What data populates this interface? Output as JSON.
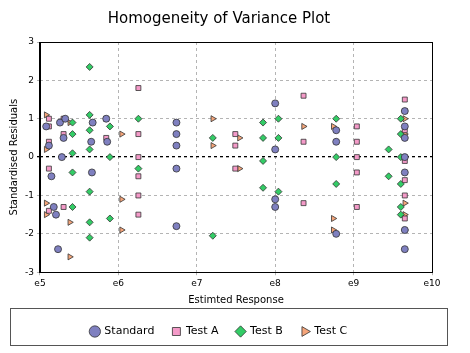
{
  "chart_data": {
    "type": "scatter",
    "title": "Homogeneity of Variance Plot",
    "x_label": "Estimted Response",
    "y_label": "Standardised Residuals",
    "log": "x",
    "grid": true,
    "legend": "bottom",
    "xlim": [
      100000,
      10000000000
    ],
    "xticks": [
      {
        "value": 100000,
        "label": "e5"
      },
      {
        "value": 1000000,
        "label": "e6"
      },
      {
        "value": 10000000,
        "label": "e7"
      },
      {
        "value": 100000000,
        "label": "e8"
      },
      {
        "value": 1000000000,
        "label": "e9"
      },
      {
        "value": 10000000000,
        "label": "e10"
      }
    ],
    "ylim": [
      -3,
      3
    ],
    "yticks": [
      -3,
      -2,
      -1,
      0,
      1,
      2,
      3
    ],
    "series": [
      {
        "name": "Standard",
        "color": "#7f80c0",
        "marker": "circle",
        "x": [
          120000,
          130000,
          140000,
          150000,
          160000,
          170000,
          180000,
          190000,
          200000,
          210000,
          450000,
          460000,
          470000,
          700000,
          720000,
          5500000,
          5500000,
          5500000,
          5500000,
          5500000,
          100000000,
          100000000,
          100000000,
          100000000,
          600000000,
          600000000,
          600000000,
          4500000000,
          4500000000,
          4500000000,
          4500000000,
          4500000000,
          4500000000,
          4500000000
        ],
        "values": [
          0.8,
          0.3,
          -0.5,
          -1.3,
          -1.5,
          -2.4,
          0.9,
          0.0,
          0.5,
          1.0,
          0.4,
          -0.4,
          0.9,
          1.0,
          0.4,
          0.9,
          0.6,
          0.3,
          -0.3,
          -1.8,
          1.4,
          0.2,
          -1.1,
          -1.3,
          0.7,
          0.4,
          -2.0,
          1.2,
          0.5,
          0.0,
          -0.4,
          -1.9,
          -2.4,
          0.8
        ]
      },
      {
        "name": "Test A",
        "color": "#f49ac8",
        "marker": "square",
        "x": [
          130000,
          130000,
          130000,
          130000,
          130000,
          200000,
          200000,
          200000,
          700000,
          700000,
          1800000,
          1800000,
          1800000,
          1800000,
          1800000,
          1800000,
          31000000,
          31000000,
          31000000,
          230000000,
          230000000,
          230000000,
          1100000000,
          1100000000,
          1100000000,
          1100000000,
          1100000000,
          4500000000,
          4500000000,
          4500000000,
          4500000000,
          4500000000,
          4500000000,
          4500000000
        ],
        "values": [
          1.0,
          0.4,
          -0.3,
          -1.4,
          0.8,
          1.0,
          0.6,
          -1.3,
          1.0,
          0.5,
          1.8,
          0.6,
          0.0,
          -0.5,
          -1.0,
          -1.5,
          0.6,
          0.3,
          -0.3,
          1.6,
          0.4,
          -1.2,
          0.8,
          0.4,
          0.0,
          -0.4,
          -1.3,
          1.5,
          1.2,
          0.7,
          -0.1,
          -0.6,
          -1.0,
          -1.6
        ]
      },
      {
        "name": "Test B",
        "color": "#33cc66",
        "marker": "diamond",
        "x": [
          260000,
          260000,
          260000,
          260000,
          260000,
          430000,
          430000,
          430000,
          430000,
          430000,
          430000,
          430000,
          780000,
          780000,
          780000,
          1800000,
          1800000,
          16000000,
          16000000,
          70000000,
          70000000,
          70000000,
          70000000,
          110000000,
          110000000,
          110000000,
          600000000,
          600000000,
          600000000,
          4000000000,
          4000000000,
          4000000000,
          4000000000,
          4000000000,
          4000000000,
          2800000000,
          2800000000
        ],
        "values": [
          0.1,
          0.6,
          -0.4,
          -1.3,
          0.9,
          2.35,
          0.7,
          0.2,
          -0.9,
          -1.7,
          -2.1,
          1.1,
          0.8,
          0.0,
          -1.6,
          1.0,
          -0.3,
          0.5,
          -2.05,
          0.9,
          0.5,
          -0.1,
          -0.8,
          0.5,
          1.0,
          -0.9,
          1.0,
          0.0,
          -0.7,
          1.0,
          0.6,
          0.0,
          -1.3,
          -1.5,
          -0.7,
          0.2,
          -0.5
        ]
      },
      {
        "name": "Test C",
        "color": "#f5a57a",
        "marker": "triangle",
        "x": [
          120000,
          120000,
          120000,
          120000,
          240000,
          240000,
          240000,
          1100000,
          1100000,
          1100000,
          16000000,
          16000000,
          35000000,
          35000000,
          230000000,
          550000000,
          550000000,
          550000000,
          4500000000,
          4500000000,
          4500000000,
          4500000000,
          4500000000,
          4500000000
        ],
        "values": [
          1.1,
          0.2,
          -1.2,
          -1.5,
          -2.6,
          -1.7,
          0.9,
          0.6,
          -1.1,
          -1.9,
          1.0,
          0.3,
          0.5,
          -0.3,
          0.8,
          0.8,
          -1.6,
          -1.9,
          1.0,
          0.6,
          0.0,
          -1.2,
          -1.5,
          -1.9
        ]
      }
    ]
  }
}
